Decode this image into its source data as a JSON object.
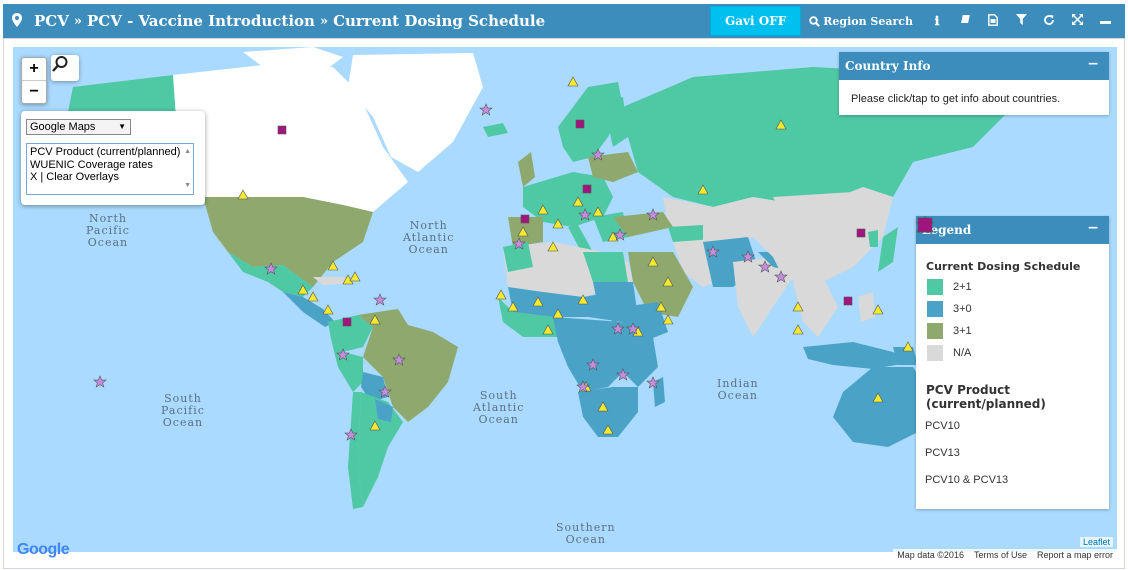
{
  "breadcrumb": {
    "items": [
      "PCV",
      "PCV - Vaccine Introduction",
      "Current Dosing Schedule"
    ]
  },
  "toolbar": {
    "gavi_label": "Gavi OFF",
    "region_search_label": "Region Search"
  },
  "map": {
    "zoom_in": "+",
    "zoom_out": "−",
    "base_layer": "Google Maps",
    "overlays": [
      "PCV Product (current/planned)",
      "WUENIC Coverage rates",
      "X | Clear Overlays"
    ],
    "oceans": {
      "north_pacific": [
        "North",
        "Pacific",
        "Ocean"
      ],
      "north_atlantic": [
        "North",
        "Atlantic",
        "Ocean"
      ],
      "south_pacific": [
        "South",
        "Pacific",
        "Ocean"
      ],
      "south_atlantic": [
        "South",
        "Atlantic",
        "Ocean"
      ],
      "indian": [
        "Indian",
        "Ocean"
      ],
      "southern": [
        "Southern",
        "Ocean"
      ]
    },
    "google_logo": "Google",
    "leaflet": "Leaflet",
    "attribution": {
      "data": "Map data ©2016",
      "terms": "Terms of Use",
      "report": "Report a map error"
    }
  },
  "country_info": {
    "title": "Country Info",
    "body": "Please click/tap to get info about countries."
  },
  "legend": {
    "title": "Legend",
    "schedule_title": "Current Dosing Schedule",
    "schedules": [
      {
        "label": "2+1",
        "color": "#4fc8a4"
      },
      {
        "label": "3+0",
        "color": "#4aa3c6"
      },
      {
        "label": "3+1",
        "color": "#8ea86d"
      },
      {
        "label": "N/A",
        "color": "#d9d9d9"
      }
    ],
    "product_title": "PCV Product (current/planned)",
    "products": [
      {
        "label": "PCV10",
        "shape": "star",
        "color": "#c58de0"
      },
      {
        "label": "PCV13",
        "shape": "triangle",
        "color": "#f5e92d"
      },
      {
        "label": "PCV10 & PCV13",
        "shape": "square",
        "color": "#a0157e"
      }
    ]
  }
}
